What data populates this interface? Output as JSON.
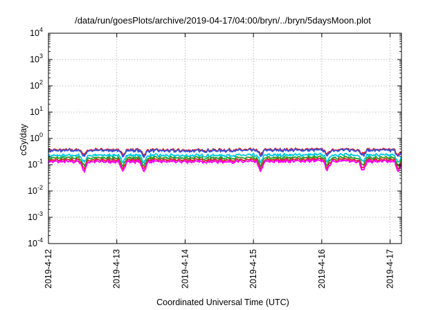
{
  "chart_data": {
    "type": "line",
    "title": "/data/run/goesPlots/archive/2019-04-17/04:00/bryn/../bryn/5daysMoon.plot",
    "xlabel": "Coordinated Universal Time (UTC)",
    "ylabel": "cGy/day",
    "yscale": "log",
    "ylim": [
      0.0001,
      10000
    ],
    "xlim": [
      "2019-04-12",
      "2019-04-17 04:00"
    ],
    "x_ticks": [
      "2019-4-12",
      "2019-4-13",
      "2019-4-14",
      "2019-4-15",
      "2019-4-16",
      "2019-4-17"
    ],
    "y_ticks": [
      {
        "base": "10",
        "exp": "-4",
        "value": 0.0001
      },
      {
        "base": "10",
        "exp": "-3",
        "value": 0.001
      },
      {
        "base": "10",
        "exp": "-2",
        "value": 0.01
      },
      {
        "base": "10",
        "exp": "-1",
        "value": 0.1
      },
      {
        "base": "10",
        "exp": "0",
        "value": 1
      },
      {
        "base": "10",
        "exp": "1",
        "value": 10
      },
      {
        "base": "10",
        "exp": "2",
        "value": 100
      },
      {
        "base": "10",
        "exp": "3",
        "value": 1000
      },
      {
        "base": "10",
        "exp": "4",
        "value": 10000
      }
    ],
    "grid": true,
    "series": [
      {
        "color": "#e41a1c",
        "x": [
          "2019-04-12",
          "2019-04-13",
          "2019-04-14",
          "2019-04-15",
          "2019-04-16",
          "2019-04-17",
          "2019-04-17 04:00"
        ],
        "y": [
          0.36,
          0.37,
          0.35,
          0.37,
          0.38,
          0.37,
          0.35
        ]
      },
      {
        "color": "#3a4fd8",
        "x": [
          "2019-04-12",
          "2019-04-13",
          "2019-04-14",
          "2019-04-15",
          "2019-04-16",
          "2019-04-17",
          "2019-04-17 04:00"
        ],
        "y": [
          0.34,
          0.35,
          0.33,
          0.35,
          0.36,
          0.35,
          0.33
        ]
      },
      {
        "color": "#00c8e0",
        "x": [
          "2019-04-12",
          "2019-04-13",
          "2019-04-14",
          "2019-04-15",
          "2019-04-16",
          "2019-04-17",
          "2019-04-17 04:00"
        ],
        "y": [
          0.22,
          0.23,
          0.22,
          0.23,
          0.24,
          0.23,
          0.22
        ]
      },
      {
        "color": "#2ca02c",
        "x": [
          "2019-04-12",
          "2019-04-13",
          "2019-04-14",
          "2019-04-15",
          "2019-04-16",
          "2019-04-17",
          "2019-04-17 04:00"
        ],
        "y": [
          0.18,
          0.18,
          0.18,
          0.18,
          0.19,
          0.18,
          0.18
        ]
      },
      {
        "color": "#d62728",
        "x": [
          "2019-04-12",
          "2019-04-13",
          "2019-04-14",
          "2019-04-15",
          "2019-04-16",
          "2019-04-17",
          "2019-04-17 04:00"
        ],
        "y": [
          0.15,
          0.15,
          0.15,
          0.15,
          0.16,
          0.15,
          0.15
        ]
      },
      {
        "color": "#ff00ff",
        "x": [
          "2019-04-12",
          "2019-04-13",
          "2019-04-14",
          "2019-04-15",
          "2019-04-16",
          "2019-04-17",
          "2019-04-17 04:00"
        ],
        "y": [
          0.13,
          0.13,
          0.13,
          0.13,
          0.14,
          0.13,
          0.13
        ]
      }
    ],
    "dips": [
      "2019-04-12 12:30",
      "2019-04-13 02:00",
      "2019-04-13 09:30",
      "2019-04-15 02:30",
      "2019-04-16 02:00",
      "2019-04-16 14:30",
      "2019-04-17 03:00"
    ]
  }
}
